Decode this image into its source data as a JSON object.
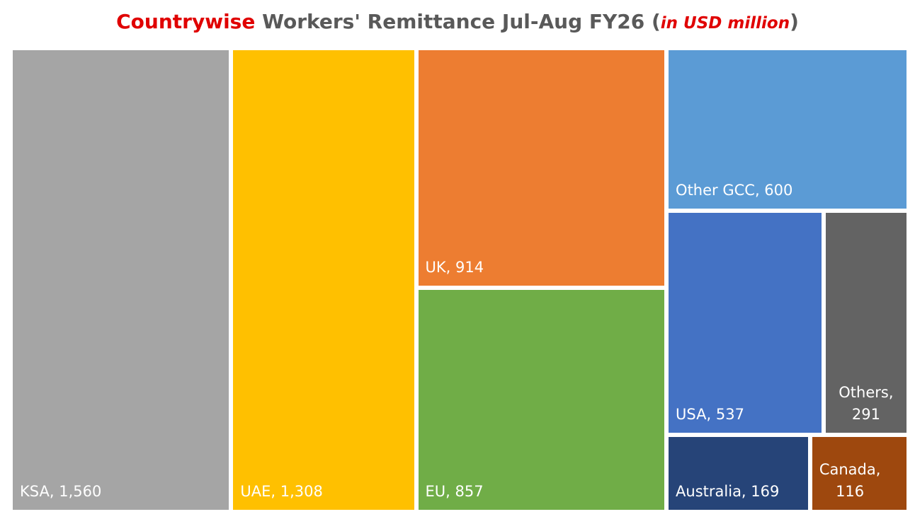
{
  "title": {
    "part1": "Countrywise",
    "part2": " Workers' Remittance Jul-Aug FY26 (",
    "part3": "in USD million",
    "part4": ")"
  },
  "colors": {
    "title_accent": "#e00000",
    "title_main": "#595959"
  },
  "chart_data": {
    "type": "treemap",
    "title": "Countrywise Workers' Remittance Jul-Aug FY26 (in USD million)",
    "unit": "USD million",
    "items": [
      {
        "name": "KSA",
        "value": 1560,
        "label": "KSA, 1,560",
        "color": "#a5a5a5"
      },
      {
        "name": "UAE",
        "value": 1308,
        "label": "UAE, 1,308",
        "color": "#ffc000"
      },
      {
        "name": "UK",
        "value": 914,
        "label": "UK, 914",
        "color": "#ed7d31"
      },
      {
        "name": "EU",
        "value": 857,
        "label": "EU, 857",
        "color": "#70ad47"
      },
      {
        "name": "Other GCC",
        "value": 600,
        "label": "Other GCC, 600",
        "color": "#5b9bd5"
      },
      {
        "name": "USA",
        "value": 537,
        "label": "USA, 537",
        "color": "#4472c4"
      },
      {
        "name": "Others",
        "value": 291,
        "label_name": "Others,",
        "label_value": "291",
        "color": "#636363"
      },
      {
        "name": "Australia",
        "value": 169,
        "label": "Australia, 169",
        "color": "#264478"
      },
      {
        "name": "Canada",
        "value": 116,
        "label_name": "Canada,",
        "label_value": "116",
        "color": "#9e480e"
      }
    ]
  }
}
